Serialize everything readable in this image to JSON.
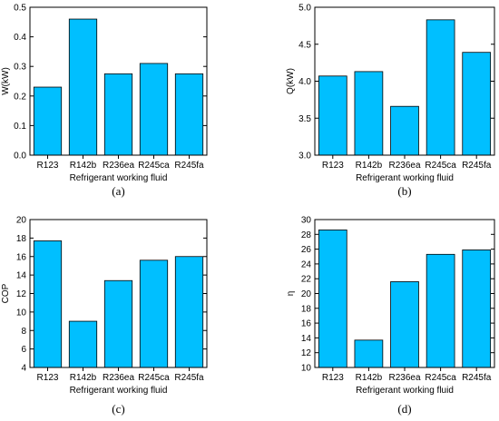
{
  "figure": {
    "bar_color": "#00bfff",
    "bar_stroke": "#000000"
  },
  "chart_data": [
    {
      "panel": "(a)",
      "type": "bar",
      "categories": [
        "R123",
        "R142b",
        "R236ea",
        "R245ca",
        "R245fa"
      ],
      "values": [
        0.23,
        0.46,
        0.275,
        0.31,
        0.275
      ],
      "xlabel": "Refrigerant working fluid",
      "ylabel": "W(kW)",
      "ylim": [
        0.0,
        0.5
      ],
      "yticks": [
        "0.0",
        "0.1",
        "0.2",
        "0.3",
        "0.4",
        "0.5"
      ]
    },
    {
      "panel": "(b)",
      "type": "bar",
      "categories": [
        "R123",
        "R142b",
        "R236ea",
        "R245ca",
        "R245fa"
      ],
      "values": [
        4.07,
        4.13,
        3.66,
        4.83,
        4.39
      ],
      "xlabel": "Refrigerant working fluid",
      "ylabel": "Q(kW)",
      "ylim": [
        3.0,
        5.0
      ],
      "yticks": [
        "3.0",
        "3.5",
        "4.0",
        "4.5",
        "5.0"
      ]
    },
    {
      "panel": "(c)",
      "type": "bar",
      "categories": [
        "R123",
        "R142b",
        "R236ea",
        "R245ca",
        "R245fa"
      ],
      "values": [
        17.7,
        9.0,
        13.4,
        15.6,
        16.0
      ],
      "xlabel": "Refrigerant working fluid",
      "ylabel": "COP",
      "ylim": [
        4,
        20
      ],
      "yticks": [
        "4",
        "6",
        "8",
        "10",
        "12",
        "14",
        "16",
        "18",
        "20"
      ]
    },
    {
      "panel": "(d)",
      "type": "bar",
      "categories": [
        "R123",
        "R142b",
        "R236ea",
        "R245ca",
        "R245fa"
      ],
      "values": [
        28.6,
        13.7,
        21.6,
        25.3,
        25.9
      ],
      "xlabel": "Refrigerant working fluid",
      "ylabel": "η",
      "ylim": [
        10,
        30
      ],
      "yticks": [
        "10",
        "12",
        "14",
        "16",
        "18",
        "20",
        "22",
        "24",
        "26",
        "28",
        "30"
      ]
    }
  ]
}
